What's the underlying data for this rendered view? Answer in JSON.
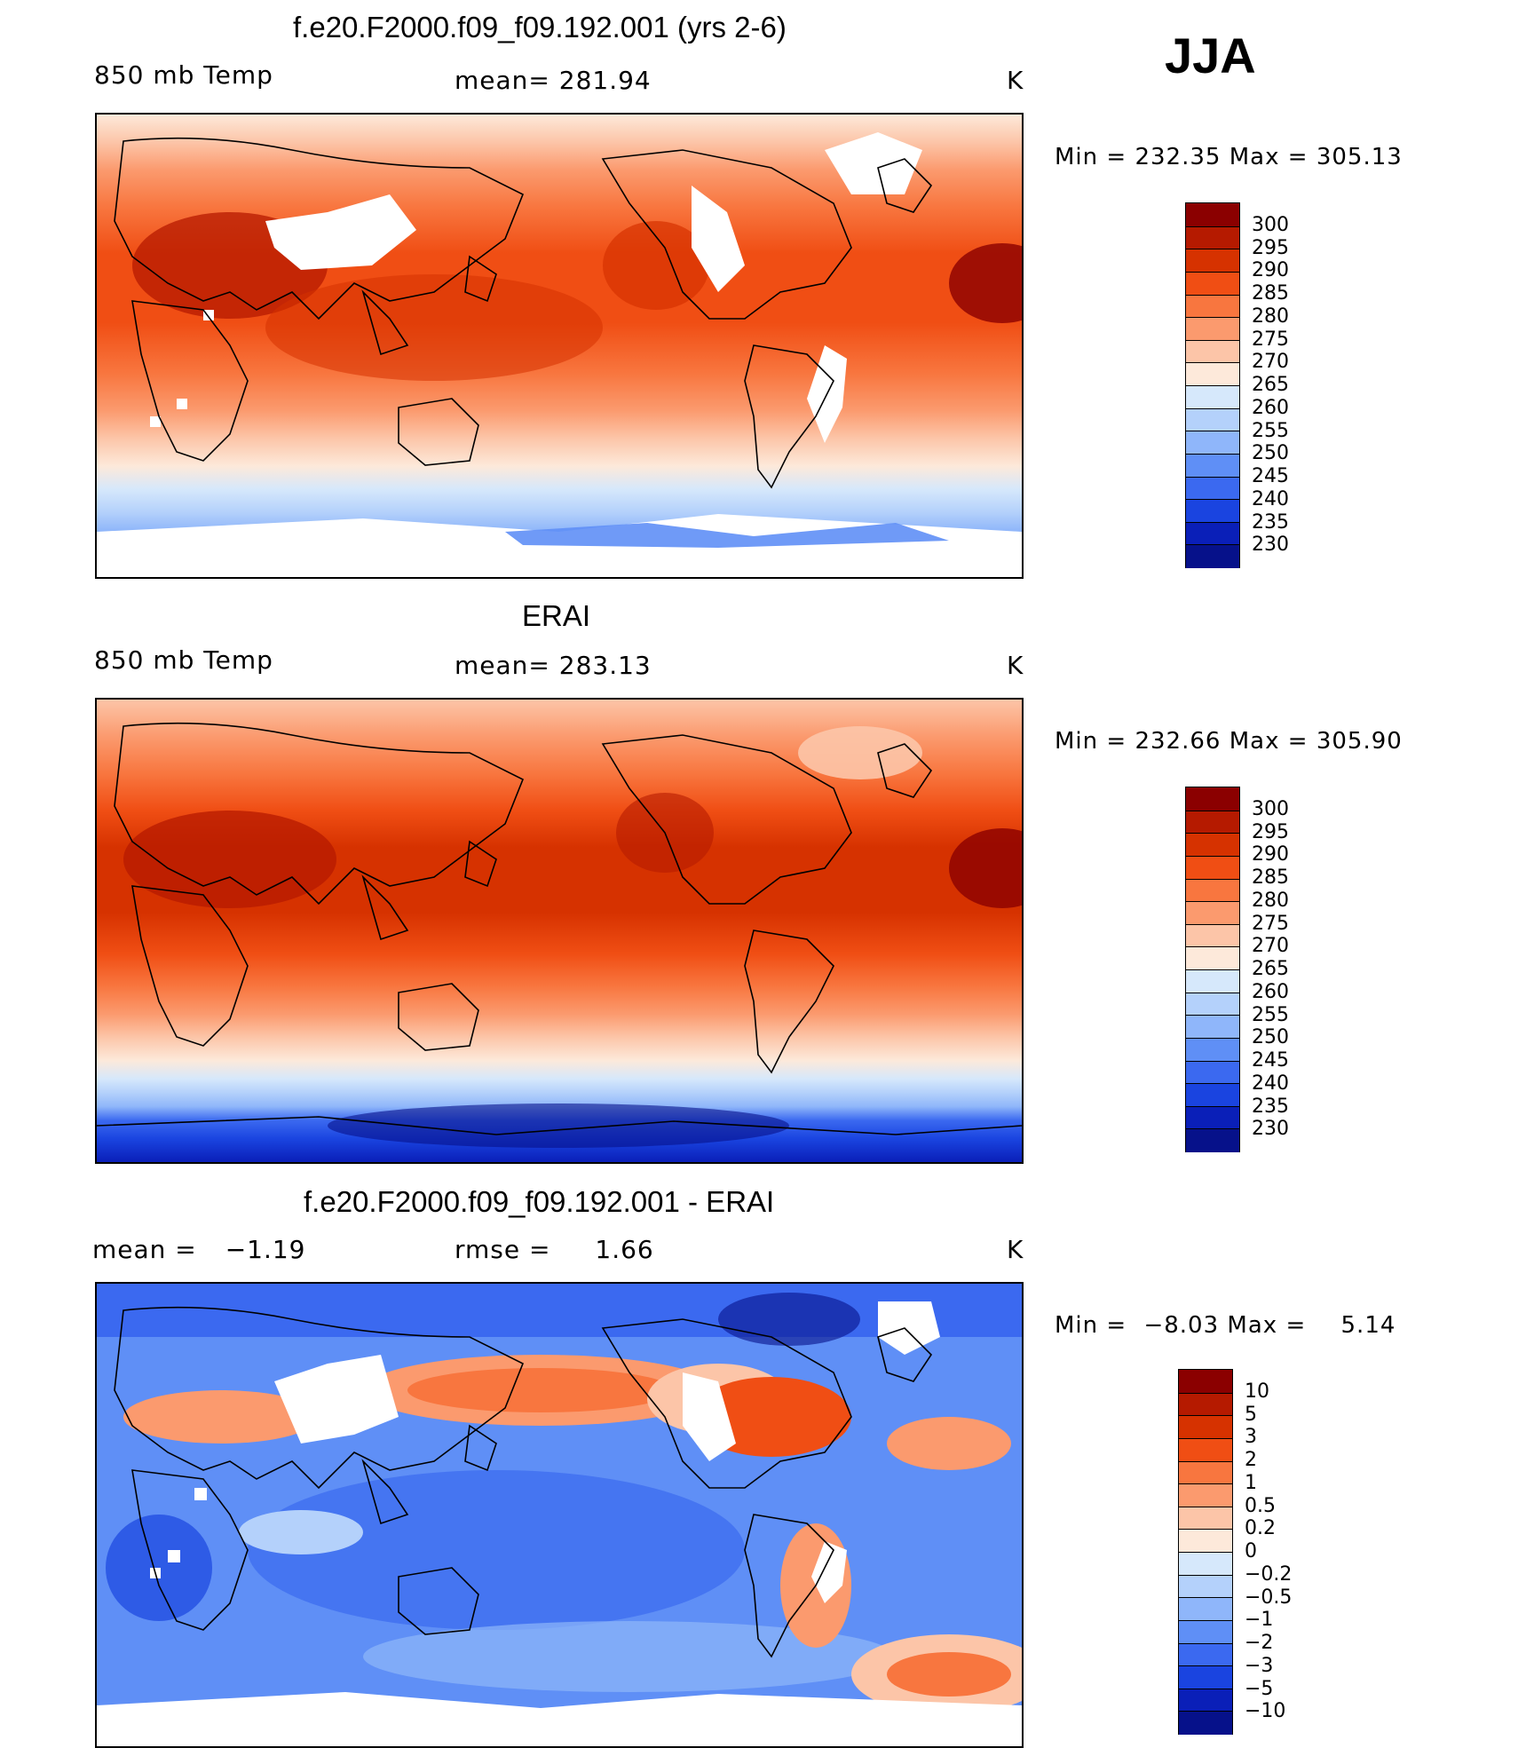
{
  "season_label": "JJA",
  "panels": [
    {
      "title": "f.e20.F2000.f09_f09.192.001 (yrs 2-6)",
      "left_label": "850 mb Temp",
      "center_label": "mean= 281.94",
      "unit": "K",
      "min_label": "Min",
      "min_value": "232.35",
      "max_label": "Max",
      "max_value": "305.13",
      "colorbar_labels": [
        "300",
        "295",
        "290",
        "285",
        "280",
        "275",
        "270",
        "265",
        "260",
        "255",
        "250",
        "245",
        "240",
        "235",
        "230"
      ]
    },
    {
      "title": "ERAI",
      "left_label": "850 mb Temp",
      "center_label": "mean= 283.13",
      "unit": "K",
      "min_label": "Min",
      "min_value": "232.66",
      "max_label": "Max",
      "max_value": "305.90",
      "colorbar_labels": [
        "300",
        "295",
        "290",
        "285",
        "280",
        "275",
        "270",
        "265",
        "260",
        "255",
        "250",
        "245",
        "240",
        "235",
        "230"
      ]
    },
    {
      "title": "f.e20.F2000.f09_f09.192.001 - ERAI",
      "left_label": "mean =",
      "left_value": "−1.19",
      "center_label": "rmse =",
      "center_value": "1.66",
      "unit": "K",
      "min_label": "Min",
      "min_value": "−8.03",
      "max_label": "Max",
      "max_value": "5.14",
      "colorbar_labels": [
        "10",
        "5",
        "3",
        "2",
        "1",
        "0.5",
        "0.2",
        "0",
        "−0.2",
        "−0.5",
        "−1",
        "−2",
        "−3",
        "−5",
        "−10"
      ]
    }
  ],
  "colors": {
    "abs_scale": [
      "#8b0000",
      "#b51a00",
      "#d63200",
      "#f04e14",
      "#f8763f",
      "#fb9a6e",
      "#fcc5a8",
      "#fde9da",
      "#d6e8fb",
      "#b4d1fb",
      "#8fb6fa",
      "#5f8ff6",
      "#3b69f0",
      "#1a44e0",
      "#0a1fb8",
      "#06118a"
    ],
    "diff_scale": [
      "#8b0000",
      "#b51a00",
      "#d63200",
      "#f04e14",
      "#f8763f",
      "#fb9a6e",
      "#fcc5a8",
      "#fde9da",
      "#d6e8fb",
      "#b4d1fb",
      "#8fb6fa",
      "#5f8ff6",
      "#3b69f0",
      "#1a44e0",
      "#0a1fb8",
      "#06118a"
    ]
  }
}
